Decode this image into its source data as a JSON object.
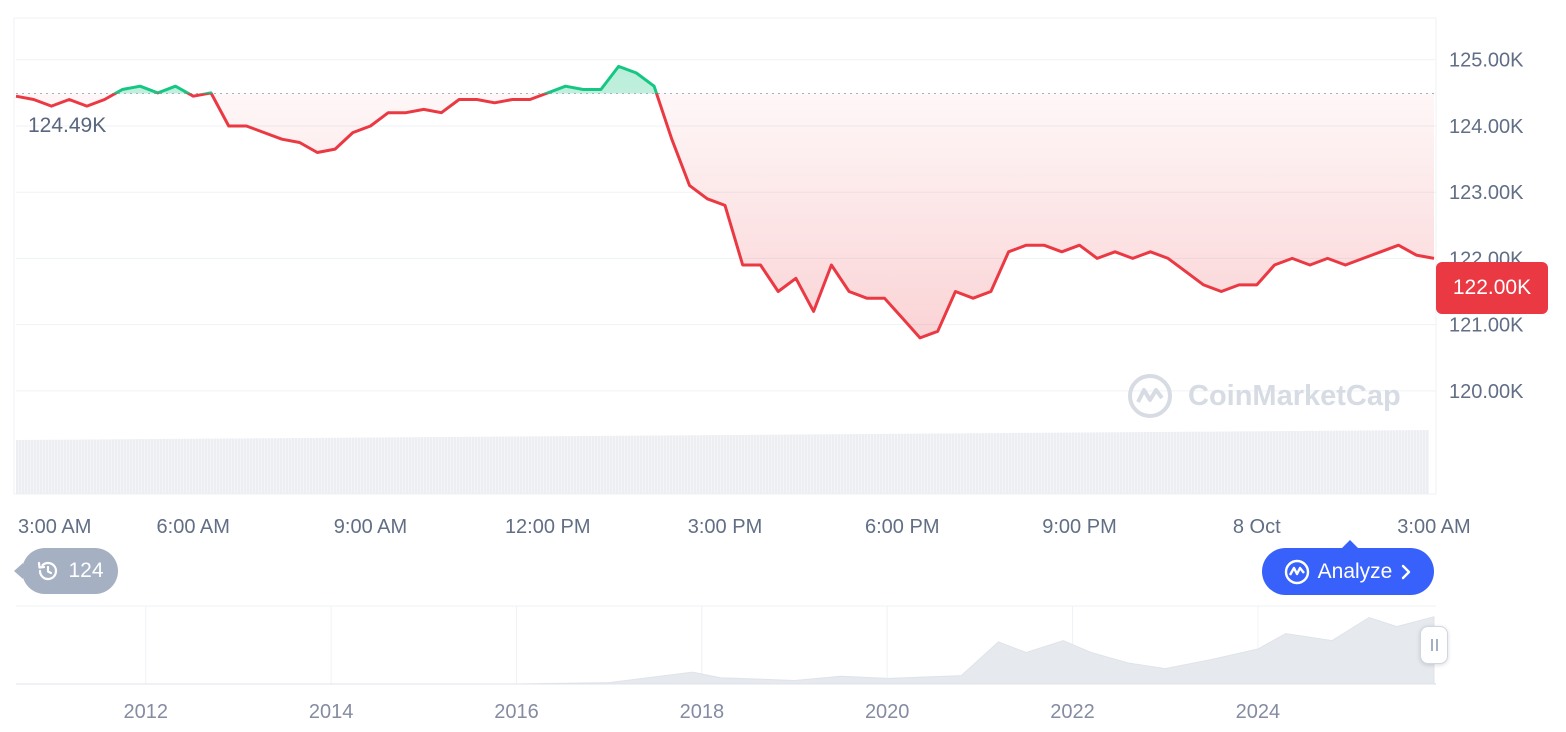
{
  "chart_data": [
    {
      "type": "line",
      "title": "",
      "reference_line": {
        "value": 124.49,
        "label": "124.49K"
      },
      "current_price": {
        "value": 122.0,
        "label": "122.00K"
      },
      "y_axis": {
        "unit": "K",
        "ylim": [
          119.5,
          125.6
        ],
        "ticks": [
          125.0,
          124.0,
          123.0,
          122.0,
          121.0,
          120.0
        ],
        "tick_labels": [
          "125.00K",
          "124.00K",
          "123.00K",
          "122.00K",
          "121.00K",
          "120.00K"
        ]
      },
      "x_axis": {
        "tick_labels": [
          "3:00 AM",
          "6:00 AM",
          "9:00 AM",
          "12:00 PM",
          "3:00 PM",
          "6:00 PM",
          "9:00 PM",
          "8 Oct",
          "3:00 AM"
        ],
        "tick_hours": [
          3,
          6,
          9,
          12,
          15,
          18,
          21,
          24,
          27
        ],
        "xlim": [
          3,
          27
        ]
      },
      "colors": {
        "above": "#16c784",
        "below": "#ea3943",
        "grid": "#eff2f5"
      },
      "series": [
        {
          "x": [
            3.0,
            3.3,
            3.6,
            3.9,
            4.2,
            4.5,
            4.8,
            5.1,
            5.4,
            5.7,
            6.0,
            6.3,
            6.6,
            6.9,
            7.2,
            7.5,
            7.8,
            8.1,
            8.4,
            8.7,
            9.0,
            9.3,
            9.6,
            9.9,
            10.2,
            10.5,
            10.8,
            11.1,
            11.4,
            11.7,
            12.0,
            12.3,
            12.6,
            12.9,
            13.2,
            13.5,
            13.8,
            14.1,
            14.4,
            14.7,
            15.0,
            15.3,
            15.6,
            15.9,
            16.2,
            16.5,
            16.8,
            17.1,
            17.4,
            17.7,
            18.0,
            18.3,
            18.6,
            18.9,
            19.2,
            19.5,
            19.8,
            20.1,
            20.4,
            20.7,
            21.0,
            21.3,
            21.6,
            21.9,
            22.2,
            22.5,
            22.8,
            23.1,
            23.4,
            23.7,
            24.0,
            24.3,
            24.6,
            24.9,
            25.2,
            25.5,
            25.8,
            26.1,
            26.4,
            26.7,
            27.0
          ],
          "y": [
            124.45,
            124.4,
            124.3,
            124.4,
            124.3,
            124.4,
            124.55,
            124.6,
            124.5,
            124.6,
            124.45,
            124.5,
            124.0,
            124.0,
            123.9,
            123.8,
            123.75,
            123.6,
            123.65,
            123.9,
            124.0,
            124.2,
            124.2,
            124.25,
            124.2,
            124.4,
            124.4,
            124.35,
            124.4,
            124.4,
            124.5,
            124.6,
            124.55,
            124.55,
            124.9,
            124.8,
            124.6,
            123.8,
            123.1,
            122.9,
            122.8,
            121.9,
            121.9,
            121.5,
            121.7,
            121.2,
            121.9,
            121.5,
            121.4,
            121.4,
            121.1,
            120.8,
            120.9,
            121.5,
            121.4,
            121.5,
            122.1,
            122.2,
            122.2,
            122.1,
            122.2,
            122.0,
            122.1,
            122.0,
            122.1,
            122.0,
            121.8,
            121.6,
            121.5,
            121.6,
            121.6,
            121.9,
            122.0,
            121.9,
            122.0,
            121.9,
            122.0,
            122.1,
            122.2,
            122.05,
            122.0
          ]
        }
      ]
    },
    {
      "type": "area",
      "title": "",
      "x_axis": {
        "tick_labels": [
          "2012",
          "2014",
          "2016",
          "2018",
          "2020",
          "2022",
          "2024"
        ],
        "ticks": [
          2012,
          2014,
          2016,
          2018,
          2020,
          2022,
          2024
        ],
        "xlim": [
          2010.6,
          2025.9
        ]
      },
      "series": [
        {
          "x": [
            2010.6,
            2013,
            2016,
            2017,
            2017.9,
            2018.2,
            2019,
            2019.5,
            2020,
            2020.8,
            2021.2,
            2021.5,
            2021.9,
            2022.2,
            2022.6,
            2023,
            2023.5,
            2024,
            2024.3,
            2024.8,
            2025.2,
            2025.5,
            2025.9
          ],
          "y": [
            0,
            0,
            0,
            0.02,
            0.17,
            0.09,
            0.05,
            0.11,
            0.08,
            0.12,
            0.6,
            0.45,
            0.62,
            0.45,
            0.3,
            0.22,
            0.35,
            0.5,
            0.72,
            0.62,
            0.95,
            0.82,
            0.96
          ]
        }
      ]
    }
  ],
  "ui": {
    "history_badge": "124",
    "analyze_button": "Analyze",
    "watermark": "CoinMarketCap"
  }
}
